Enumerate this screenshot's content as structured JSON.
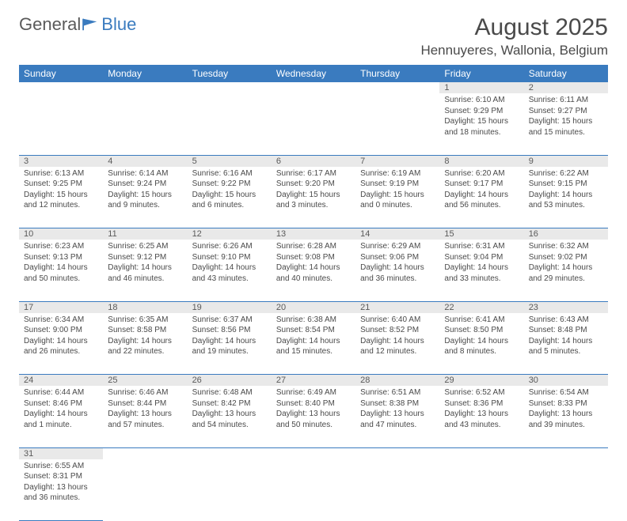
{
  "logo": {
    "text1": "General",
    "text2": "Blue"
  },
  "title": "August 2025",
  "location": "Hennuyeres, Wallonia, Belgium",
  "weekdays": [
    "Sunday",
    "Monday",
    "Tuesday",
    "Wednesday",
    "Thursday",
    "Friday",
    "Saturday"
  ],
  "colors": {
    "header_bg": "#3a7bbf",
    "header_fg": "#ffffff",
    "daynum_bg": "#e9e9e9",
    "text": "#4a4a4a",
    "rule": "#3a7bbf"
  },
  "grid": [
    [
      null,
      null,
      null,
      null,
      null,
      {
        "n": "1",
        "sunrise": "6:10 AM",
        "sunset": "9:29 PM",
        "daylight": "15 hours and 18 minutes."
      },
      {
        "n": "2",
        "sunrise": "6:11 AM",
        "sunset": "9:27 PM",
        "daylight": "15 hours and 15 minutes."
      }
    ],
    [
      {
        "n": "3",
        "sunrise": "6:13 AM",
        "sunset": "9:25 PM",
        "daylight": "15 hours and 12 minutes."
      },
      {
        "n": "4",
        "sunrise": "6:14 AM",
        "sunset": "9:24 PM",
        "daylight": "15 hours and 9 minutes."
      },
      {
        "n": "5",
        "sunrise": "6:16 AM",
        "sunset": "9:22 PM",
        "daylight": "15 hours and 6 minutes."
      },
      {
        "n": "6",
        "sunrise": "6:17 AM",
        "sunset": "9:20 PM",
        "daylight": "15 hours and 3 minutes."
      },
      {
        "n": "7",
        "sunrise": "6:19 AM",
        "sunset": "9:19 PM",
        "daylight": "15 hours and 0 minutes."
      },
      {
        "n": "8",
        "sunrise": "6:20 AM",
        "sunset": "9:17 PM",
        "daylight": "14 hours and 56 minutes."
      },
      {
        "n": "9",
        "sunrise": "6:22 AM",
        "sunset": "9:15 PM",
        "daylight": "14 hours and 53 minutes."
      }
    ],
    [
      {
        "n": "10",
        "sunrise": "6:23 AM",
        "sunset": "9:13 PM",
        "daylight": "14 hours and 50 minutes."
      },
      {
        "n": "11",
        "sunrise": "6:25 AM",
        "sunset": "9:12 PM",
        "daylight": "14 hours and 46 minutes."
      },
      {
        "n": "12",
        "sunrise": "6:26 AM",
        "sunset": "9:10 PM",
        "daylight": "14 hours and 43 minutes."
      },
      {
        "n": "13",
        "sunrise": "6:28 AM",
        "sunset": "9:08 PM",
        "daylight": "14 hours and 40 minutes."
      },
      {
        "n": "14",
        "sunrise": "6:29 AM",
        "sunset": "9:06 PM",
        "daylight": "14 hours and 36 minutes."
      },
      {
        "n": "15",
        "sunrise": "6:31 AM",
        "sunset": "9:04 PM",
        "daylight": "14 hours and 33 minutes."
      },
      {
        "n": "16",
        "sunrise": "6:32 AM",
        "sunset": "9:02 PM",
        "daylight": "14 hours and 29 minutes."
      }
    ],
    [
      {
        "n": "17",
        "sunrise": "6:34 AM",
        "sunset": "9:00 PM",
        "daylight": "14 hours and 26 minutes."
      },
      {
        "n": "18",
        "sunrise": "6:35 AM",
        "sunset": "8:58 PM",
        "daylight": "14 hours and 22 minutes."
      },
      {
        "n": "19",
        "sunrise": "6:37 AM",
        "sunset": "8:56 PM",
        "daylight": "14 hours and 19 minutes."
      },
      {
        "n": "20",
        "sunrise": "6:38 AM",
        "sunset": "8:54 PM",
        "daylight": "14 hours and 15 minutes."
      },
      {
        "n": "21",
        "sunrise": "6:40 AM",
        "sunset": "8:52 PM",
        "daylight": "14 hours and 12 minutes."
      },
      {
        "n": "22",
        "sunrise": "6:41 AM",
        "sunset": "8:50 PM",
        "daylight": "14 hours and 8 minutes."
      },
      {
        "n": "23",
        "sunrise": "6:43 AM",
        "sunset": "8:48 PM",
        "daylight": "14 hours and 5 minutes."
      }
    ],
    [
      {
        "n": "24",
        "sunrise": "6:44 AM",
        "sunset": "8:46 PM",
        "daylight": "14 hours and 1 minute."
      },
      {
        "n": "25",
        "sunrise": "6:46 AM",
        "sunset": "8:44 PM",
        "daylight": "13 hours and 57 minutes."
      },
      {
        "n": "26",
        "sunrise": "6:48 AM",
        "sunset": "8:42 PM",
        "daylight": "13 hours and 54 minutes."
      },
      {
        "n": "27",
        "sunrise": "6:49 AM",
        "sunset": "8:40 PM",
        "daylight": "13 hours and 50 minutes."
      },
      {
        "n": "28",
        "sunrise": "6:51 AM",
        "sunset": "8:38 PM",
        "daylight": "13 hours and 47 minutes."
      },
      {
        "n": "29",
        "sunrise": "6:52 AM",
        "sunset": "8:36 PM",
        "daylight": "13 hours and 43 minutes."
      },
      {
        "n": "30",
        "sunrise": "6:54 AM",
        "sunset": "8:33 PM",
        "daylight": "13 hours and 39 minutes."
      }
    ],
    [
      {
        "n": "31",
        "sunrise": "6:55 AM",
        "sunset": "8:31 PM",
        "daylight": "13 hours and 36 minutes."
      },
      null,
      null,
      null,
      null,
      null,
      null
    ]
  ],
  "labels": {
    "sunrise": "Sunrise:",
    "sunset": "Sunset:",
    "daylight": "Daylight:"
  }
}
